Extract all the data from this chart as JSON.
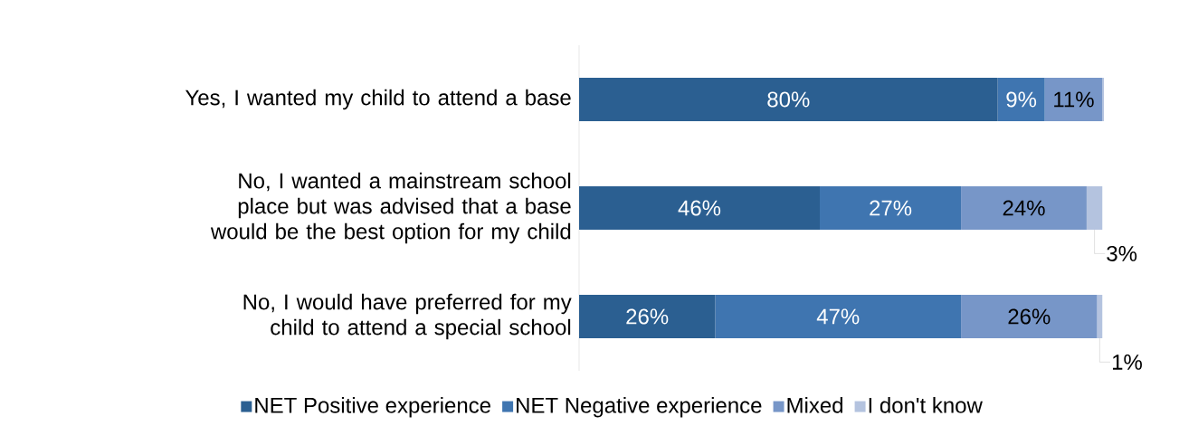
{
  "chart_data": {
    "type": "bar",
    "orientation": "horizontal",
    "stacked": true,
    "legend": "bottom",
    "categories": [
      "Yes, I wanted my child to attend a base",
      "No, I wanted a mainstream school place but was advised that a base would be the best option for my child",
      "No, I would have preferred for my child to attend a special school"
    ],
    "series": [
      {
        "name": "NET Positive experience",
        "color": "#2b5f91",
        "values": [
          80,
          46,
          26
        ],
        "value_labels": [
          "80%",
          "46%",
          "26%"
        ]
      },
      {
        "name": "NET Negative experience",
        "color": "#3f75b0",
        "values": [
          9,
          27,
          47
        ],
        "value_labels": [
          "9%",
          "27%",
          "47%"
        ]
      },
      {
        "name": "Mixed",
        "color": "#7796c8",
        "values": [
          11,
          24,
          26
        ],
        "value_labels": [
          "11%",
          "24%",
          "26%"
        ]
      },
      {
        "name": "I don't know",
        "color": "#b4c3df",
        "values": [
          0.3,
          3,
          1
        ],
        "value_labels": [
          null,
          "3%",
          "1%"
        ]
      }
    ]
  }
}
